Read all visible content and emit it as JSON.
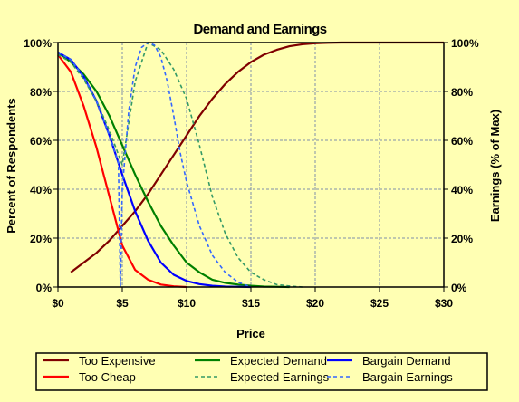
{
  "chart_data": {
    "type": "line",
    "title": "Demand and Earnings",
    "xlabel": "Price",
    "ylabel_left": "Percent of Respondents",
    "ylabel_right": "Earnings (% of Max)",
    "xlim": [
      0,
      30
    ],
    "ylim": [
      0,
      100
    ],
    "x_ticks": [
      "$0",
      "$5",
      "$10",
      "$15",
      "$20",
      "$25",
      "$30"
    ],
    "y_ticks_left": [
      "0%",
      "20%",
      "40%",
      "60%",
      "80%",
      "100%"
    ],
    "y_ticks_right": [
      "0%",
      "20%",
      "40%",
      "60%",
      "80%",
      "100%"
    ],
    "grid": true,
    "legend_position": "bottom",
    "series": [
      {
        "name": "Too Expensive",
        "color": "#800000",
        "dash": "solid",
        "x": [
          1,
          2,
          3,
          4,
          5,
          6,
          7,
          8,
          9,
          10,
          11,
          12,
          13,
          14,
          15,
          16,
          17,
          18,
          19,
          20,
          21,
          22,
          23,
          30
        ],
        "y": [
          6,
          10,
          14,
          19,
          25,
          31,
          38,
          46,
          54,
          62,
          70,
          77,
          83,
          88,
          92,
          95,
          97,
          98.5,
          99.3,
          99.7,
          99.9,
          100,
          100,
          100
        ]
      },
      {
        "name": "Too Cheap",
        "color": "#ff0000",
        "dash": "solid",
        "x": [
          0,
          1,
          2,
          3,
          4,
          5,
          6,
          7,
          8,
          9,
          10
        ],
        "y": [
          95,
          88,
          74,
          57,
          37,
          17,
          7,
          3,
          1,
          0.3,
          0
        ]
      },
      {
        "name": "Expected Demand",
        "color": "#008000",
        "dash": "solid",
        "x": [
          0,
          1,
          2,
          3,
          4,
          5,
          6,
          7,
          8,
          9,
          10,
          11,
          12,
          13,
          14,
          15,
          16,
          17,
          18
        ],
        "y": [
          96,
          92,
          87,
          80,
          70,
          58,
          46,
          35,
          25,
          17,
          10,
          6,
          3,
          1.7,
          1,
          0.5,
          0.2,
          0.1,
          0
        ]
      },
      {
        "name": "Bargain Demand",
        "color": "#0000ff",
        "dash": "solid",
        "x": [
          0,
          1,
          2,
          3,
          4,
          5,
          6,
          7,
          8,
          9,
          10,
          11,
          12,
          13,
          14,
          15
        ],
        "y": [
          96,
          93,
          86,
          76,
          62,
          46,
          31,
          19,
          10,
          5,
          2.5,
          1.2,
          0.5,
          0.2,
          0.1,
          0
        ]
      },
      {
        "name": "Expected Earnings",
        "color": "#339966",
        "dash": "dashed",
        "x": [
          0,
          1,
          2,
          3,
          4,
          5,
          6,
          7,
          8,
          9,
          10,
          11,
          12,
          13,
          14,
          15,
          16,
          17,
          18,
          19
        ],
        "y": [
          95,
          92,
          85,
          76,
          64,
          50,
          84,
          100,
          97,
          89,
          77,
          58,
          37,
          22,
          12,
          6,
          3,
          1,
          0.4,
          0
        ]
      },
      {
        "name": "Bargain Earnings",
        "color": "#3366ff",
        "dash": "dashed",
        "x": [
          0,
          1,
          2,
          3,
          4,
          4.7,
          4.85,
          5,
          5.5,
          6,
          6.5,
          7,
          7.5,
          8,
          8.5,
          9,
          9.5,
          10,
          11,
          12,
          13,
          14,
          15
        ],
        "y": [
          96,
          93,
          86,
          76,
          62,
          51,
          0,
          40,
          72,
          90,
          98,
          100,
          99,
          94,
          84,
          70,
          55,
          43,
          25,
          13,
          6,
          2,
          0
        ]
      }
    ]
  }
}
